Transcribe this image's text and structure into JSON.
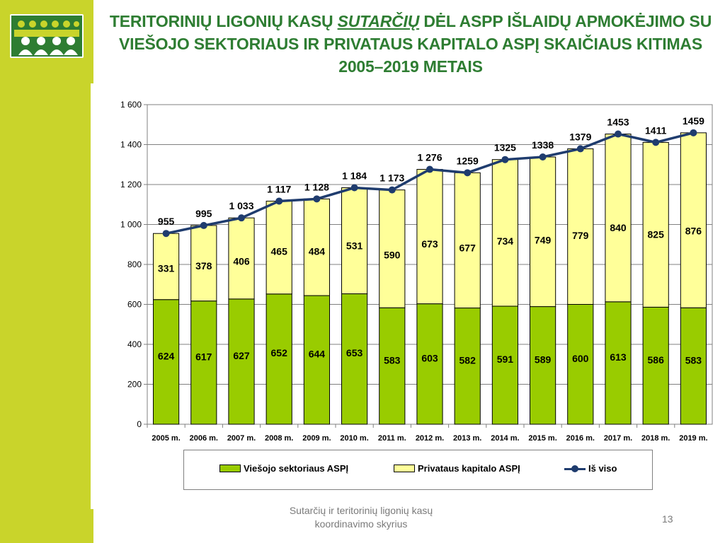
{
  "slide": {
    "title_part1": "TERITORINIŲ LIGONIŲ KASŲ ",
    "title_em": "SUTARČIŲ",
    "title_part2": " DĖL ASPP IŠLAIDŲ APMOKĖJIMO SU VIEŠOJO SEKTORIAUS IR PRIVATAUS KAPITALO ASPĮ SKAIČIAUS KITIMAS 2005–2019 METAIS",
    "footer": "Sutarčių ir teritorinių ligonių kasų koordinavimo skyrius",
    "page_number": "13"
  },
  "colors": {
    "sidebar": "#c9d42b",
    "title": "#2e7d32",
    "public_bar": "#99cc00",
    "private_bar": "#ffff99",
    "total_line": "#1f3c6e"
  },
  "chart_data": {
    "type": "bar",
    "stacked": true,
    "categories": [
      "2005 m.",
      "2006 m.",
      "2007 m.",
      "2008 m.",
      "2009 m.",
      "2010 m.",
      "2011 m.",
      "2012 m.",
      "2013 m.",
      "2014 m.",
      "2015 m.",
      "2016 m.",
      "2017 m.",
      "2018 m.",
      "2019 m."
    ],
    "series": [
      {
        "name": "Viešojo sektoriaus ASPĮ",
        "kind": "bar",
        "values": [
          624,
          617,
          627,
          652,
          644,
          653,
          583,
          603,
          582,
          591,
          589,
          600,
          613,
          586,
          583
        ]
      },
      {
        "name": "Privataus kapitalo ASPĮ",
        "kind": "bar",
        "values": [
          331,
          378,
          406,
          465,
          484,
          531,
          590,
          673,
          677,
          734,
          749,
          779,
          840,
          825,
          876
        ]
      },
      {
        "name": "Iš viso",
        "kind": "line",
        "values": [
          955,
          995,
          1033,
          1117,
          1128,
          1184,
          1173,
          1276,
          1259,
          1325,
          1338,
          1379,
          1453,
          1411,
          1459
        ]
      }
    ],
    "total_labels": [
      "955",
      "995",
      "1 033",
      "1 117",
      "1 128",
      "1 184",
      "1 173",
      "1 276",
      "1259",
      "1325",
      "1338",
      "1379",
      "1453",
      "1411",
      "1459"
    ],
    "y_ticks": [
      "0",
      "200",
      "400",
      "600",
      "800",
      "1 000",
      "1 200",
      "1 400",
      "1 600"
    ],
    "ylim": [
      0,
      1600
    ],
    "grid": true,
    "legend_position": "bottom"
  }
}
